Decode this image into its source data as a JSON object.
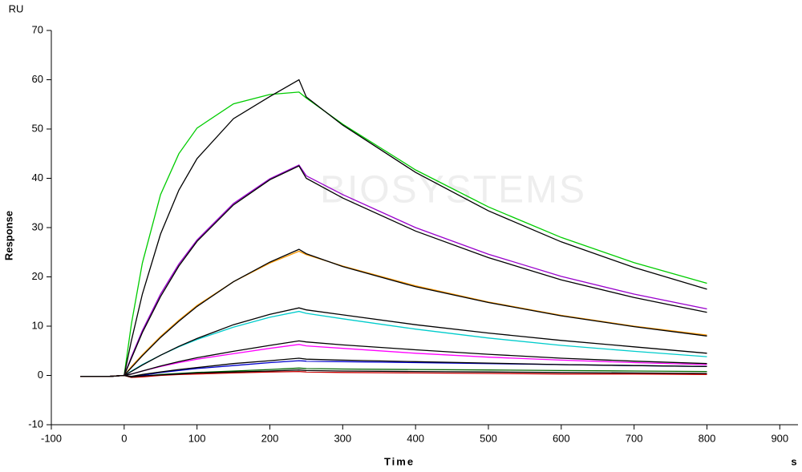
{
  "chart_data": {
    "type": "line",
    "y_unit": "RU",
    "x_unit": "s",
    "ylabel": "Response",
    "xlabel": "Time",
    "watermark": "BIOSYSTEMS",
    "x": [
      -60,
      -20,
      0,
      10,
      25,
      50,
      75,
      100,
      150,
      200,
      240,
      250,
      300,
      400,
      500,
      600,
      700,
      800
    ],
    "series": [
      {
        "color": "#00cc00",
        "values": [
          -0.2,
          -0.2,
          0,
          10.5,
          22.8,
          36.7,
          45.0,
          50.2,
          55.1,
          57.0,
          57.5,
          56.3,
          51.0,
          41.7,
          34.2,
          28.0,
          22.9,
          18.7
        ]
      },
      {
        "color": "#000000",
        "values": [
          -0.2,
          -0.2,
          0,
          7.1,
          16.5,
          28.7,
          37.6,
          44.0,
          52.1,
          56.6,
          60.0,
          56.5,
          50.8,
          41.2,
          33.4,
          27.1,
          21.9,
          17.5
        ]
      },
      {
        "color": "#9900cc",
        "values": [
          -0.2,
          -0.2,
          0,
          3.8,
          9.1,
          16.5,
          22.6,
          27.5,
          34.9,
          39.9,
          42.7,
          40.5,
          36.7,
          30.0,
          24.6,
          20.1,
          16.5,
          13.5
        ]
      },
      {
        "color": "#000000",
        "values": [
          -0.2,
          -0.2,
          0,
          3.5,
          8.7,
          16.0,
          22.2,
          27.2,
          34.6,
          39.7,
          42.5,
          40.0,
          36.0,
          29.3,
          23.9,
          19.4,
          15.8,
          12.8
        ]
      },
      {
        "color": "#ff9900",
        "values": [
          -0.2,
          -0.2,
          0,
          1.8,
          4.2,
          7.9,
          11.2,
          14.2,
          19.0,
          22.8,
          25.2,
          24.5,
          22.2,
          18.2,
          14.9,
          12.2,
          10.0,
          8.2
        ]
      },
      {
        "color": "#000000",
        "values": [
          -0.2,
          -0.2,
          0,
          1.6,
          4.0,
          7.7,
          11.0,
          14.0,
          19.0,
          23.0,
          25.6,
          24.7,
          22.1,
          18.0,
          14.8,
          12.1,
          9.9,
          8.0
        ]
      },
      {
        "color": "#00cccc",
        "values": [
          -0.2,
          -0.2,
          0,
          0.9,
          2.2,
          4.1,
          5.8,
          7.3,
          9.8,
          11.8,
          13.0,
          12.6,
          11.5,
          9.4,
          7.6,
          6.1,
          4.9,
          3.8
        ]
      },
      {
        "color": "#000000",
        "values": [
          -0.2,
          -0.2,
          0,
          0.8,
          2.1,
          4.1,
          5.9,
          7.5,
          10.3,
          12.4,
          13.7,
          13.3,
          12.3,
          10.3,
          8.6,
          7.1,
          5.8,
          4.5
        ]
      },
      {
        "color": "#ff00ff",
        "values": [
          -0.2,
          -0.2,
          0,
          0.3,
          0.9,
          1.8,
          2.6,
          3.3,
          4.4,
          5.5,
          6.3,
          6.0,
          5.5,
          4.5,
          3.7,
          3.1,
          2.6,
          2.2
        ]
      },
      {
        "color": "#000000",
        "values": [
          -0.2,
          -0.2,
          0,
          0.3,
          0.9,
          1.9,
          2.8,
          3.6,
          4.9,
          6.1,
          7.0,
          6.8,
          6.2,
          5.2,
          4.3,
          3.5,
          2.9,
          2.4
        ]
      },
      {
        "color": "#0000cc",
        "values": [
          -0.2,
          -0.2,
          0,
          -0.3,
          0,
          0.6,
          1.0,
          1.4,
          2.0,
          2.6,
          3.0,
          2.9,
          2.8,
          2.6,
          2.4,
          2.2,
          2.0,
          1.8
        ]
      },
      {
        "color": "#000000",
        "values": [
          -0.2,
          -0.2,
          0,
          -0.2,
          0.2,
          0.7,
          1.2,
          1.6,
          2.4,
          3.0,
          3.5,
          3.3,
          3.1,
          2.8,
          2.5,
          2.2,
          2.0,
          1.8
        ]
      },
      {
        "color": "#006600",
        "values": [
          -0.2,
          -0.2,
          0,
          -0.4,
          -0.2,
          0.2,
          0.4,
          0.6,
          0.9,
          1.2,
          1.5,
          1.4,
          1.3,
          1.2,
          1.1,
          1.0,
          0.9,
          0.8
        ]
      },
      {
        "color": "#cc0000",
        "values": [
          -0.2,
          -0.2,
          0,
          -0.4,
          -0.3,
          0,
          0.2,
          0.3,
          0.5,
          0.7,
          0.8,
          0.7,
          0.6,
          0.5,
          0.4,
          0.3,
          0.3,
          0.2
        ]
      },
      {
        "color": "#000000",
        "values": [
          -0.2,
          -0.2,
          0,
          -0.3,
          -0.1,
          0.1,
          0.3,
          0.5,
          0.7,
          0.9,
          1.1,
          1.0,
          0.9,
          0.8,
          0.7,
          0.6,
          0.5,
          0.4
        ]
      }
    ],
    "xlim": [
      -100,
      925
    ],
    "ylim": [
      -10,
      70
    ],
    "xticks": [
      -100,
      0,
      100,
      200,
      300,
      400,
      500,
      600,
      700,
      800,
      900
    ],
    "yticks": [
      -10,
      0,
      10,
      20,
      30,
      40,
      50,
      60,
      70
    ],
    "grid": false
  }
}
